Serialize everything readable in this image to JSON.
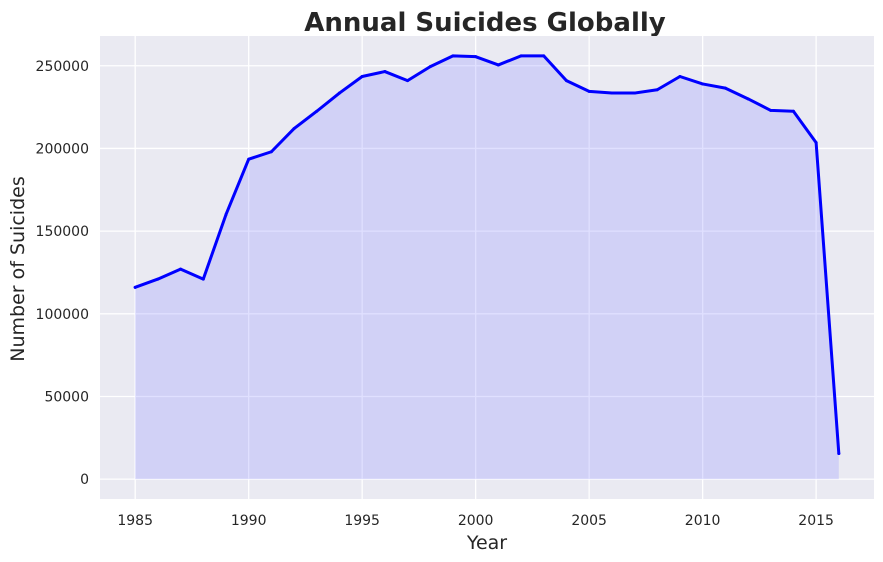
{
  "chart_data": {
    "type": "area",
    "title": "Annual Suicides Globally",
    "xlabel": "Year",
    "ylabel": "Number of Suicides",
    "xlim": [
      1983.45,
      2017.55
    ],
    "ylim": [
      -12000,
      268000
    ],
    "xticks": [
      1985,
      1990,
      1995,
      2000,
      2005,
      2010,
      2015
    ],
    "yticks": [
      0,
      50000,
      100000,
      150000,
      200000,
      250000
    ],
    "grid": true,
    "colors": {
      "line": "#0000ff",
      "fill": "#9999ff",
      "background": "#eaeaf2",
      "grid": "#ffffff"
    },
    "x": [
      1985,
      1986,
      1987,
      1988,
      1989,
      1990,
      1991,
      1992,
      1993,
      1994,
      1995,
      1996,
      1997,
      1998,
      1999,
      2000,
      2001,
      2002,
      2003,
      2004,
      2005,
      2006,
      2007,
      2008,
      2009,
      2010,
      2011,
      2012,
      2013,
      2014,
      2015,
      2016
    ],
    "series": [
      {
        "values": [
          116000,
          121000,
          127000,
          121000,
          160000,
          193500,
          198000,
          212000,
          222500,
          233500,
          243500,
          246500,
          241000,
          249500,
          256000,
          255500,
          250500,
          256000,
          256000,
          241000,
          234500,
          233500,
          233500,
          235500,
          243500,
          239000,
          236500,
          230000,
          223000,
          222500,
          203500,
          15500
        ]
      }
    ]
  }
}
